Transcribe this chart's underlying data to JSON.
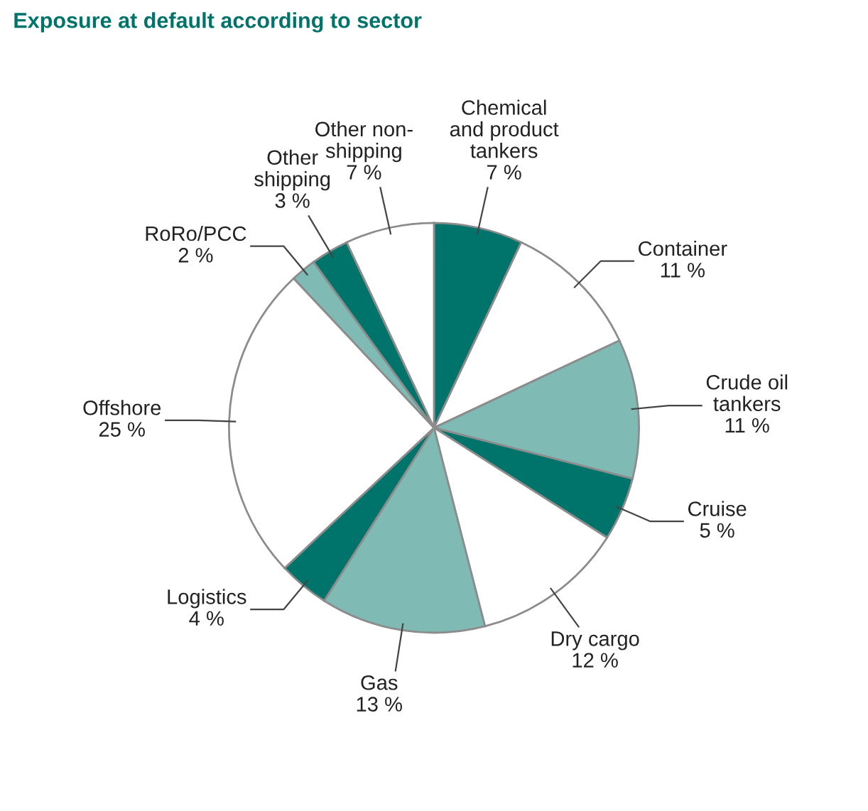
{
  "chart_data": {
    "type": "pie",
    "title": "Exposure at default according to sector",
    "categories": [
      "Chemical\nand product\ntankers",
      "Container",
      "Crude oil\ntankers",
      "Cruise",
      "Dry cargo",
      "Gas",
      "Logistics",
      "Offshore",
      "RoRo/PCC",
      "Other\nshipping",
      "Other non-\nshipping"
    ],
    "values": [
      7,
      11,
      11,
      5,
      12,
      13,
      4,
      25,
      2,
      3,
      7
    ],
    "value_labels": [
      "7 %",
      "11 %",
      "11 %",
      "5 %",
      "12 %",
      "13 %",
      "4 %",
      "25 %",
      "2 %",
      "3 %",
      "7 %"
    ],
    "colors": [
      "#00736a",
      "#ffffff",
      "#7fbab5",
      "#00736a",
      "#ffffff",
      "#7fbab5",
      "#00736a",
      "#ffffff",
      "#7fbab5",
      "#00736a",
      "#ffffff"
    ],
    "legend": false
  }
}
